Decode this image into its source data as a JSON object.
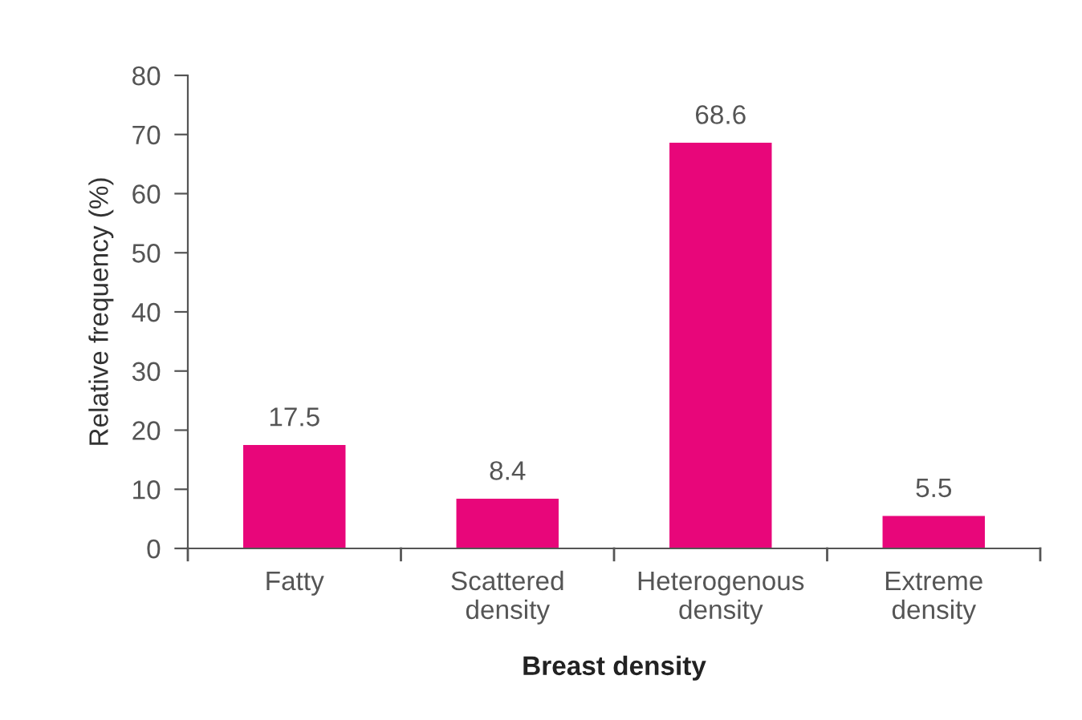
{
  "chart_data": {
    "type": "bar",
    "categories": [
      "Fatty",
      "Scattered\ndensity",
      "Heterogenous\ndensity",
      "Extreme\ndensity"
    ],
    "values": [
      17.5,
      8.4,
      68.6,
      5.5
    ],
    "color": "#e8067a",
    "xlabel": "Breast density",
    "ylabel": "Relative frequency (%)",
    "ylim": [
      0,
      80
    ],
    "yticks": [
      0,
      10,
      20,
      30,
      40,
      50,
      60,
      70,
      80
    ],
    "data_labels": true,
    "grid": false,
    "legend": false
  }
}
